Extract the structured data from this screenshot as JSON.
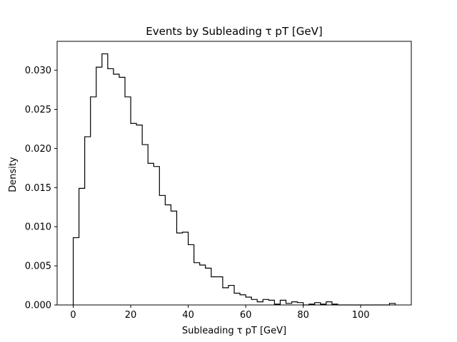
{
  "chart_data": {
    "type": "bar",
    "histtype": "step",
    "title": "Events by Subleading τ pT [GeV]",
    "xlabel": "Subleading τ pT [GeV]",
    "ylabel": "Density",
    "xlim": [
      -5.6,
      117.6
    ],
    "ylim": [
      0,
      0.0337
    ],
    "xticks": [
      0,
      20,
      40,
      60,
      80,
      100
    ],
    "xtick_labels": [
      "0",
      "20",
      "40",
      "60",
      "80",
      "100"
    ],
    "yticks": [
      0.0,
      0.005,
      0.01,
      0.015,
      0.02,
      0.025,
      0.03
    ],
    "ytick_labels": [
      "0.000",
      "0.005",
      "0.010",
      "0.015",
      "0.020",
      "0.025",
      "0.030"
    ],
    "bin_edges": [
      0,
      2,
      4,
      6,
      8,
      10,
      12,
      14,
      16,
      18,
      20,
      22,
      24,
      26,
      28,
      30,
      32,
      34,
      36,
      38,
      40,
      42,
      44,
      46,
      48,
      50,
      52,
      54,
      56,
      58,
      60,
      62,
      64,
      66,
      68,
      70,
      72,
      74,
      76,
      78,
      80,
      82,
      84,
      86,
      88,
      90,
      92,
      94,
      96,
      98,
      100,
      102,
      104,
      106,
      108,
      110,
      112
    ],
    "values": [
      0.0086,
      0.0149,
      0.0215,
      0.0266,
      0.0304,
      0.0321,
      0.0302,
      0.0295,
      0.0291,
      0.0266,
      0.0232,
      0.023,
      0.0205,
      0.0181,
      0.0177,
      0.014,
      0.0128,
      0.012,
      0.0092,
      0.0093,
      0.0077,
      0.0054,
      0.0051,
      0.0047,
      0.0036,
      0.0036,
      0.0022,
      0.0025,
      0.0015,
      0.0013,
      0.001,
      0.0007,
      0.0004,
      0.0007,
      0.0006,
      0.0001,
      0.0006,
      0.0002,
      0.0004,
      0.0003,
      0.0,
      0.0001,
      0.0003,
      0.0001,
      0.0004,
      0.0001,
      0.0,
      0.0,
      0.0,
      0.0,
      0.0,
      0.0,
      0.0,
      0.0,
      0.0,
      0.0002
    ],
    "grid": false,
    "line_color": "#000000"
  }
}
